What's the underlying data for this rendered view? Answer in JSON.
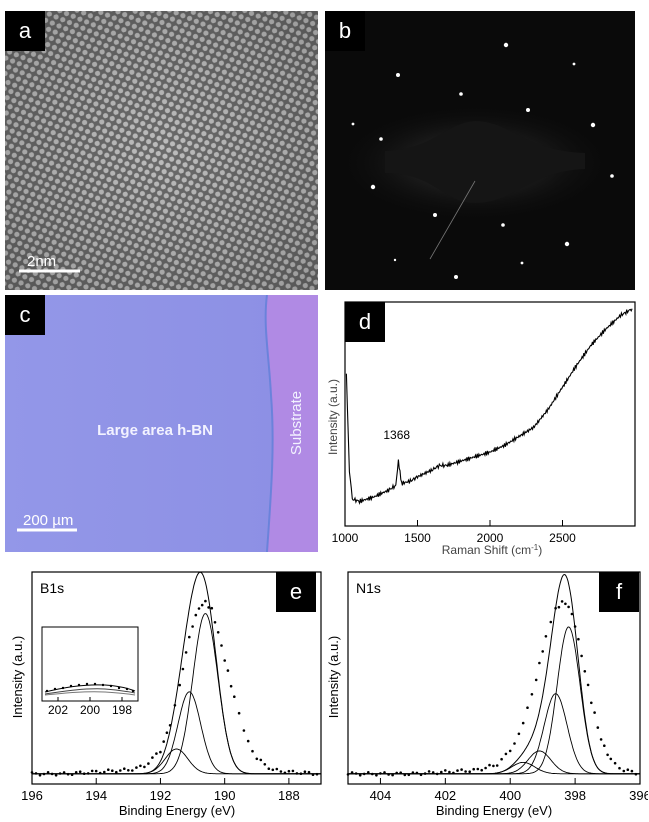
{
  "figure": {
    "panels": {
      "a": {
        "label": "a",
        "scale_bar": "2nm"
      },
      "b": {
        "label": "b"
      },
      "c": {
        "label": "c",
        "scale_bar": "200 µm",
        "region_label": "Large area h-BN",
        "substrate_label": "Substrate",
        "colors": {
          "film": "#8f93e6",
          "substrate": "#b28ae6"
        }
      },
      "d": {
        "label": "d"
      },
      "e": {
        "label": "e"
      },
      "f": {
        "label": "f"
      }
    }
  },
  "chart_data": [
    {
      "id": "d",
      "type": "line",
      "xlabel": "Raman Shift (cm-1)",
      "ylabel": "Intensity (a.u.)",
      "xlim": [
        1000,
        3000
      ],
      "ylim": [
        0,
        1
      ],
      "xticks": [
        1000,
        1500,
        2000,
        2500
      ],
      "annotations": [
        {
          "text": "1368",
          "x": 1368
        }
      ],
      "series": [
        {
          "x": [
            1010,
            1030,
            1050,
            1100,
            1200,
            1300,
            1350,
            1368,
            1390,
            1450,
            1500,
            1600,
            1650,
            1700,
            1800,
            1900,
            2000,
            2100,
            2200,
            2300,
            2400,
            2500,
            2600,
            2700,
            2800,
            2900,
            2980
          ],
          "y": [
            0.67,
            0.25,
            0.12,
            0.11,
            0.13,
            0.16,
            0.18,
            0.29,
            0.19,
            0.2,
            0.22,
            0.25,
            0.27,
            0.27,
            0.29,
            0.31,
            0.33,
            0.36,
            0.4,
            0.44,
            0.52,
            0.62,
            0.72,
            0.81,
            0.88,
            0.94,
            0.97
          ]
        }
      ]
    },
    {
      "id": "e",
      "type": "line",
      "title": "B1s",
      "xlabel": "Binding Energy (eV)",
      "ylabel": "Intensity (a.u.)",
      "xlim": [
        196,
        187
      ],
      "ylim": [
        0,
        1
      ],
      "xticks": [
        196,
        194,
        192,
        190,
        188
      ],
      "series": [
        {
          "name": "data",
          "x": [
            196,
            195,
            194,
            193,
            192.5,
            192,
            191.7,
            191.4,
            191.2,
            191.0,
            190.8,
            190.6,
            190.4,
            190.2,
            190.0,
            189.7,
            189.4,
            189.0,
            188.5,
            188,
            187
          ],
          "y": [
            0.02,
            0.02,
            0.03,
            0.04,
            0.06,
            0.14,
            0.28,
            0.48,
            0.66,
            0.8,
            0.89,
            0.92,
            0.88,
            0.76,
            0.62,
            0.42,
            0.24,
            0.1,
            0.04,
            0.03,
            0.02
          ]
        },
        {
          "name": "component1",
          "center": 190.6,
          "amplitude": 0.84,
          "width": 0.55
        },
        {
          "name": "component2",
          "center": 191.1,
          "amplitude": 0.43,
          "width": 0.5
        },
        {
          "name": "component3",
          "center": 191.5,
          "amplitude": 0.13,
          "width": 0.5
        }
      ],
      "inset": {
        "xticks": [
          202,
          200,
          198
        ],
        "xlim": [
          203,
          197
        ]
      }
    },
    {
      "id": "f",
      "type": "line",
      "title": "N1s",
      "xlabel": "Binding Energy (eV)",
      "ylabel": "Intensity (a.u.)",
      "xlim": [
        405,
        396
      ],
      "ylim": [
        0,
        1
      ],
      "xticks": [
        404,
        402,
        400,
        398,
        396
      ],
      "series": [
        {
          "name": "data",
          "x": [
            405,
            404,
            403,
            402,
            401,
            400.4,
            400.0,
            399.6,
            399.2,
            398.9,
            398.6,
            398.4,
            398.2,
            398.0,
            397.8,
            397.5,
            397.2,
            396.9,
            396.5,
            396
          ],
          "y": [
            0.02,
            0.02,
            0.02,
            0.03,
            0.04,
            0.07,
            0.14,
            0.28,
            0.52,
            0.74,
            0.88,
            0.92,
            0.9,
            0.8,
            0.64,
            0.4,
            0.2,
            0.09,
            0.04,
            0.02
          ]
        },
        {
          "name": "component1",
          "center": 398.2,
          "amplitude": 0.77,
          "width": 0.5
        },
        {
          "name": "component2",
          "center": 398.6,
          "amplitude": 0.42,
          "width": 0.5
        },
        {
          "name": "component3",
          "center": 399.1,
          "amplitude": 0.12,
          "width": 0.5
        },
        {
          "name": "component4",
          "center": 399.6,
          "amplitude": 0.06,
          "width": 0.5
        }
      ]
    }
  ]
}
